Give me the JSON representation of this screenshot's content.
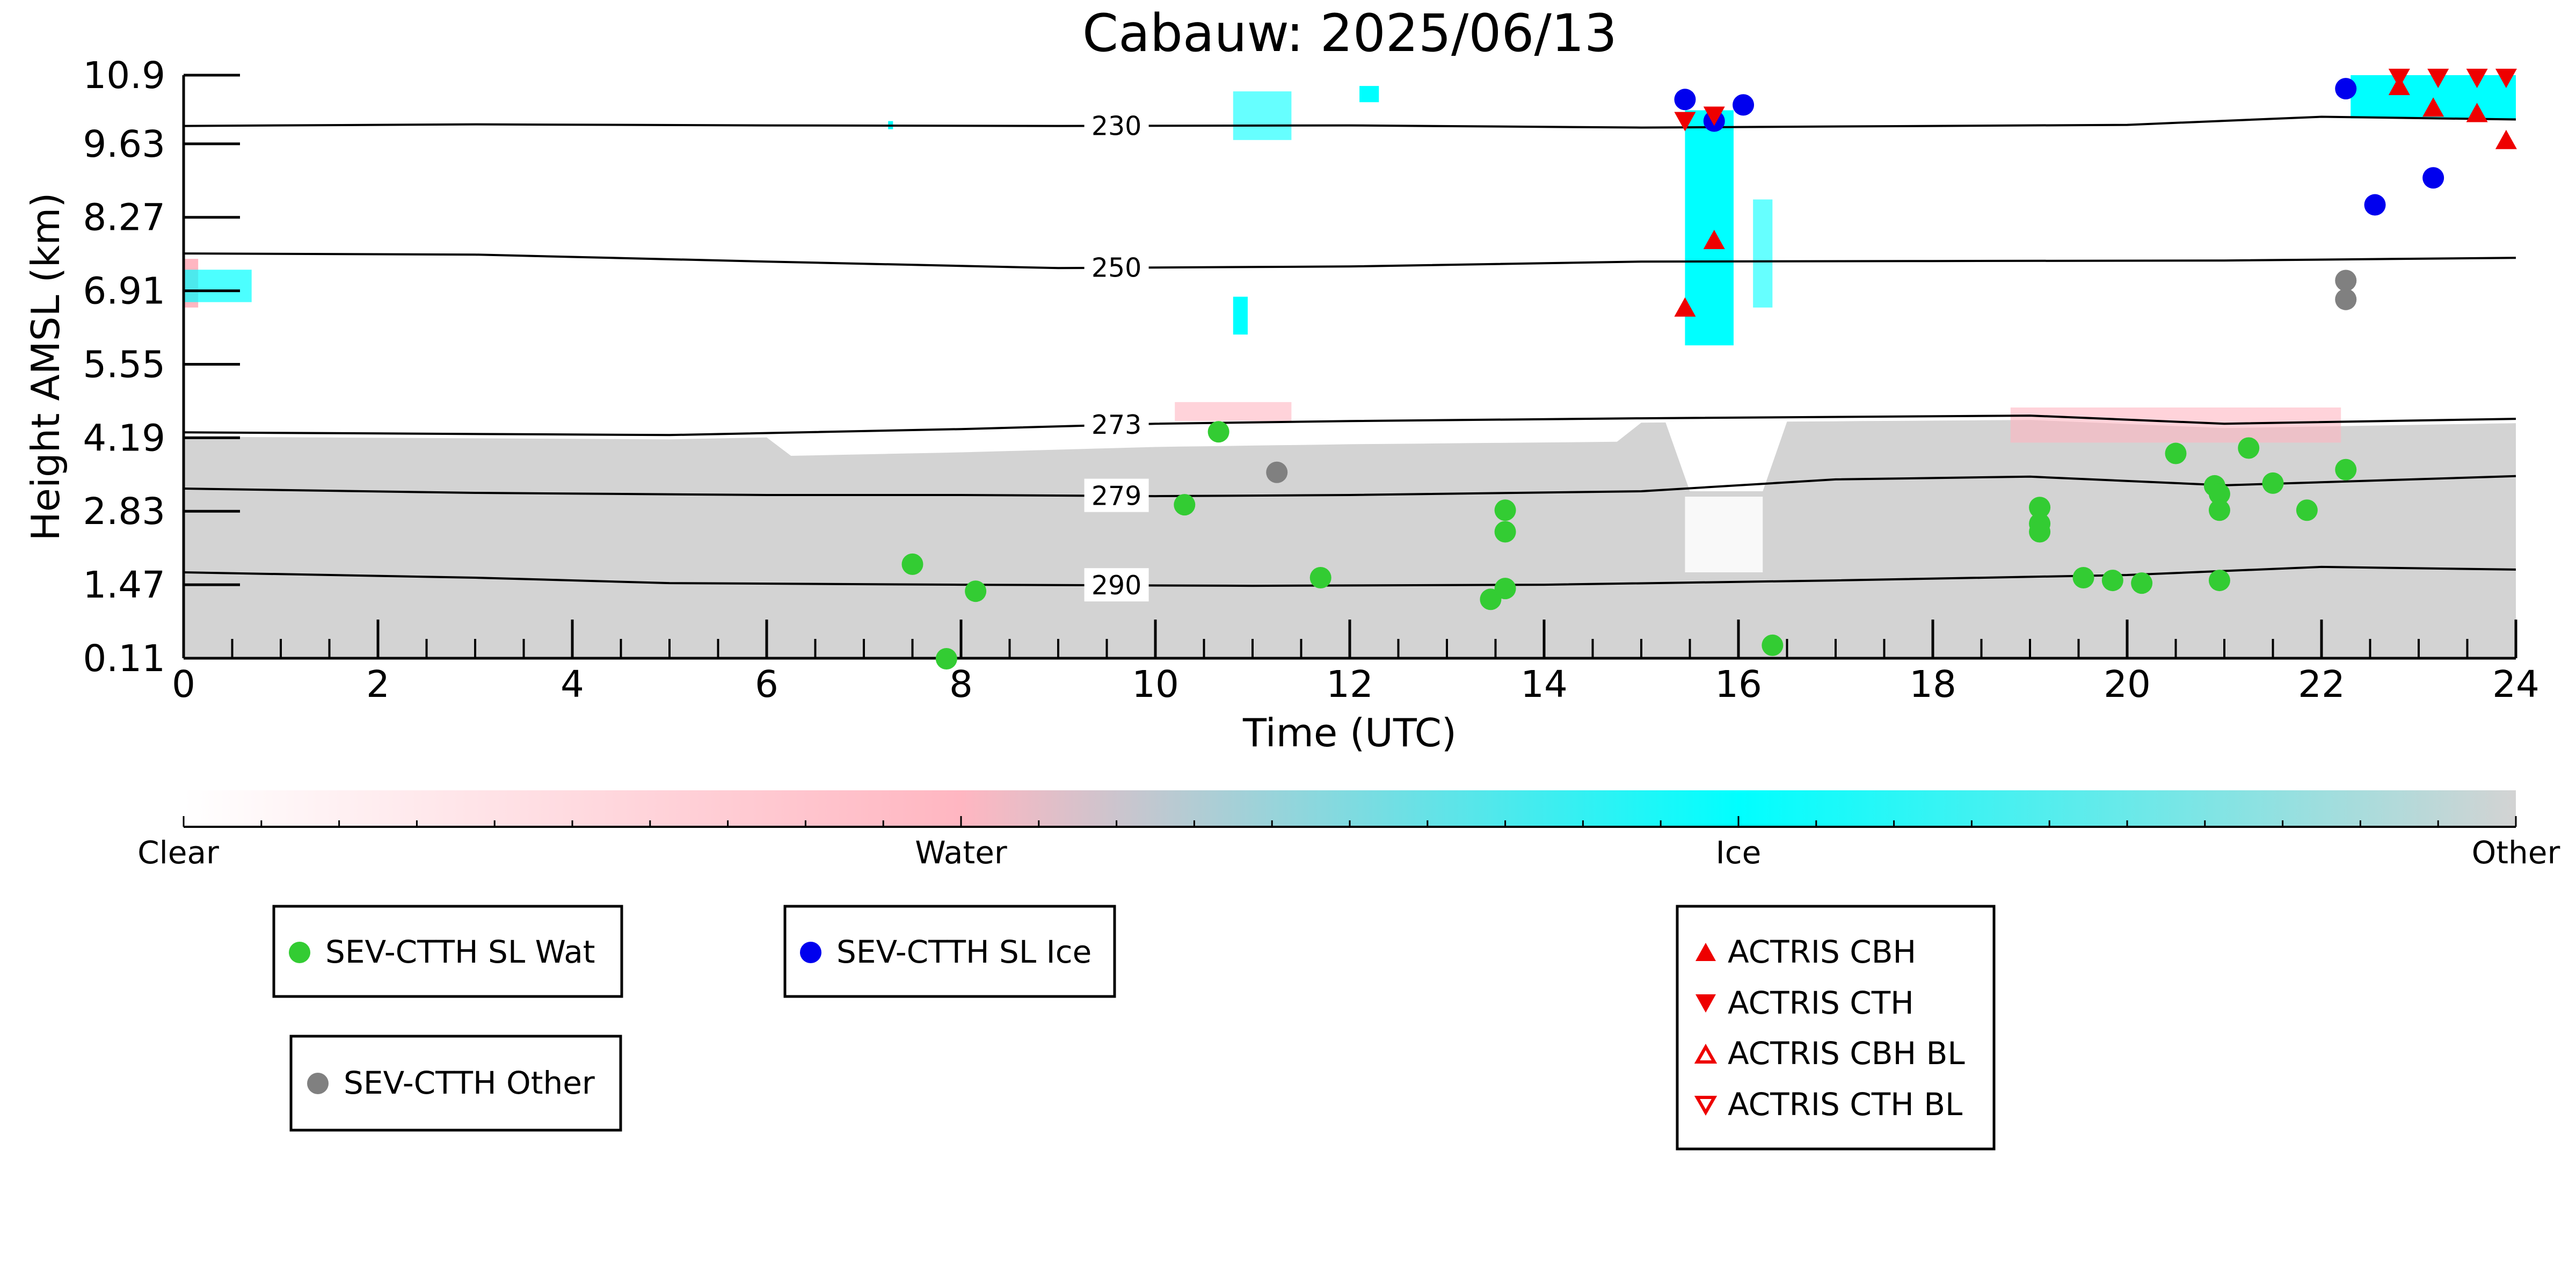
{
  "chart_data": {
    "type": "scatter",
    "title": "Cabauw: 2025/06/13",
    "xlabel": "Time (UTC)",
    "ylabel": "Height AMSL (km)",
    "xlim": [
      0,
      24
    ],
    "ylim": [
      0.11,
      10.9
    ],
    "x_ticks": [
      "0",
      "2",
      "4",
      "6",
      "8",
      "10",
      "12",
      "14",
      "16",
      "18",
      "20",
      "22",
      "24"
    ],
    "y_ticks": [
      "0.11",
      "1.47",
      "2.83",
      "4.19",
      "5.55",
      "6.91",
      "8.27",
      "9.63",
      "10.9"
    ],
    "background": "cloud classification image (Clear / Water / Ice / Other)",
    "colorbar": {
      "labels": [
        "Clear",
        "Water",
        "Ice",
        "Other"
      ],
      "colors": [
        "#ffffff",
        "#ffb6c1",
        "#00ffff",
        "#d3d3d3"
      ]
    },
    "isotherms": [
      {
        "label": "230",
        "points": [
          [
            0,
            9.96
          ],
          [
            3,
            9.99
          ],
          [
            6,
            9.97
          ],
          [
            9,
            9.96
          ],
          [
            12,
            9.97
          ],
          [
            15,
            9.93
          ],
          [
            18,
            9.96
          ],
          [
            20,
            9.98
          ],
          [
            22,
            10.13
          ],
          [
            24,
            10.08
          ]
        ]
      },
      {
        "label": "250",
        "points": [
          [
            0,
            7.6
          ],
          [
            3,
            7.58
          ],
          [
            6,
            7.45
          ],
          [
            9,
            7.33
          ],
          [
            12,
            7.36
          ],
          [
            15,
            7.45
          ],
          [
            18,
            7.46
          ],
          [
            21,
            7.47
          ],
          [
            24,
            7.52
          ]
        ]
      },
      {
        "label": "273",
        "points": [
          [
            0,
            4.29
          ],
          [
            2,
            4.27
          ],
          [
            5,
            4.24
          ],
          [
            8,
            4.35
          ],
          [
            10,
            4.45
          ],
          [
            12,
            4.5
          ],
          [
            15,
            4.55
          ],
          [
            19,
            4.6
          ],
          [
            21,
            4.45
          ],
          [
            24,
            4.54
          ]
        ]
      },
      {
        "label": "279",
        "points": [
          [
            0,
            3.25
          ],
          [
            3,
            3.17
          ],
          [
            6,
            3.13
          ],
          [
            8,
            3.13
          ],
          [
            10,
            3.11
          ],
          [
            12,
            3.13
          ],
          [
            15,
            3.2
          ],
          [
            17,
            3.42
          ],
          [
            19,
            3.47
          ],
          [
            21,
            3.31
          ],
          [
            24,
            3.48
          ]
        ]
      },
      {
        "label": "290",
        "points": [
          [
            0,
            1.7
          ],
          [
            3,
            1.6
          ],
          [
            5,
            1.5
          ],
          [
            8,
            1.47
          ],
          [
            11,
            1.45
          ],
          [
            14,
            1.47
          ],
          [
            17,
            1.55
          ],
          [
            20,
            1.65
          ],
          [
            22,
            1.8
          ],
          [
            24,
            1.75
          ]
        ]
      }
    ],
    "series": [
      {
        "name": "SEV-CTTH SL Wat",
        "color": "#33cc33",
        "marker": "circle",
        "points": [
          [
            7.5,
            1.85
          ],
          [
            7.85,
            0.1
          ],
          [
            8.15,
            1.35
          ],
          [
            10.3,
            2.95
          ],
          [
            10.65,
            4.3
          ],
          [
            11.7,
            1.6
          ],
          [
            13.45,
            1.2
          ],
          [
            13.6,
            1.4
          ],
          [
            13.6,
            2.85
          ],
          [
            13.6,
            2.45
          ],
          [
            16.35,
            0.35
          ],
          [
            19.1,
            2.9
          ],
          [
            19.1,
            2.6
          ],
          [
            19.1,
            2.45
          ],
          [
            19.55,
            1.6
          ],
          [
            19.85,
            1.55
          ],
          [
            20.15,
            1.5
          ],
          [
            20.5,
            3.9
          ],
          [
            20.9,
            3.3
          ],
          [
            20.95,
            3.15
          ],
          [
            20.95,
            2.85
          ],
          [
            20.95,
            1.55
          ],
          [
            21.25,
            4.0
          ],
          [
            21.5,
            3.35
          ],
          [
            21.85,
            2.85
          ],
          [
            22.25,
            3.6
          ]
        ]
      },
      {
        "name": "SEV-CTTH SL Ice",
        "color": "#0000ee",
        "marker": "circle",
        "points": [
          [
            15.45,
            10.45
          ],
          [
            15.75,
            10.05
          ],
          [
            16.05,
            10.35
          ],
          [
            22.25,
            10.65
          ],
          [
            22.55,
            8.5
          ],
          [
            23.15,
            9.0
          ]
        ]
      },
      {
        "name": "SEV-CTTH Other",
        "color": "#808080",
        "marker": "circle",
        "points": [
          [
            11.25,
            3.55
          ],
          [
            22.25,
            7.1
          ],
          [
            22.25,
            6.75
          ]
        ]
      },
      {
        "name": "ACTRIS CBH",
        "color": "#ee0000",
        "marker": "triangle-up",
        "points": [
          [
            15.45,
            6.6
          ],
          [
            15.75,
            7.85
          ],
          [
            22.8,
            10.7
          ],
          [
            23.15,
            10.3
          ],
          [
            23.6,
            10.2
          ],
          [
            23.9,
            9.7
          ]
        ]
      },
      {
        "name": "ACTRIS CTH",
        "color": "#ee0000",
        "marker": "triangle-down",
        "points": [
          [
            15.45,
            10.05
          ],
          [
            15.75,
            10.15
          ],
          [
            22.8,
            10.85
          ],
          [
            23.2,
            10.85
          ],
          [
            23.6,
            10.85
          ],
          [
            23.9,
            10.85
          ]
        ]
      },
      {
        "name": "ACTRIS CBH BL",
        "color": "#ee0000",
        "marker": "triangle-up-open",
        "points": []
      },
      {
        "name": "ACTRIS CTH BL",
        "color": "#ee0000",
        "marker": "triangle-down-open",
        "points": []
      }
    ]
  }
}
